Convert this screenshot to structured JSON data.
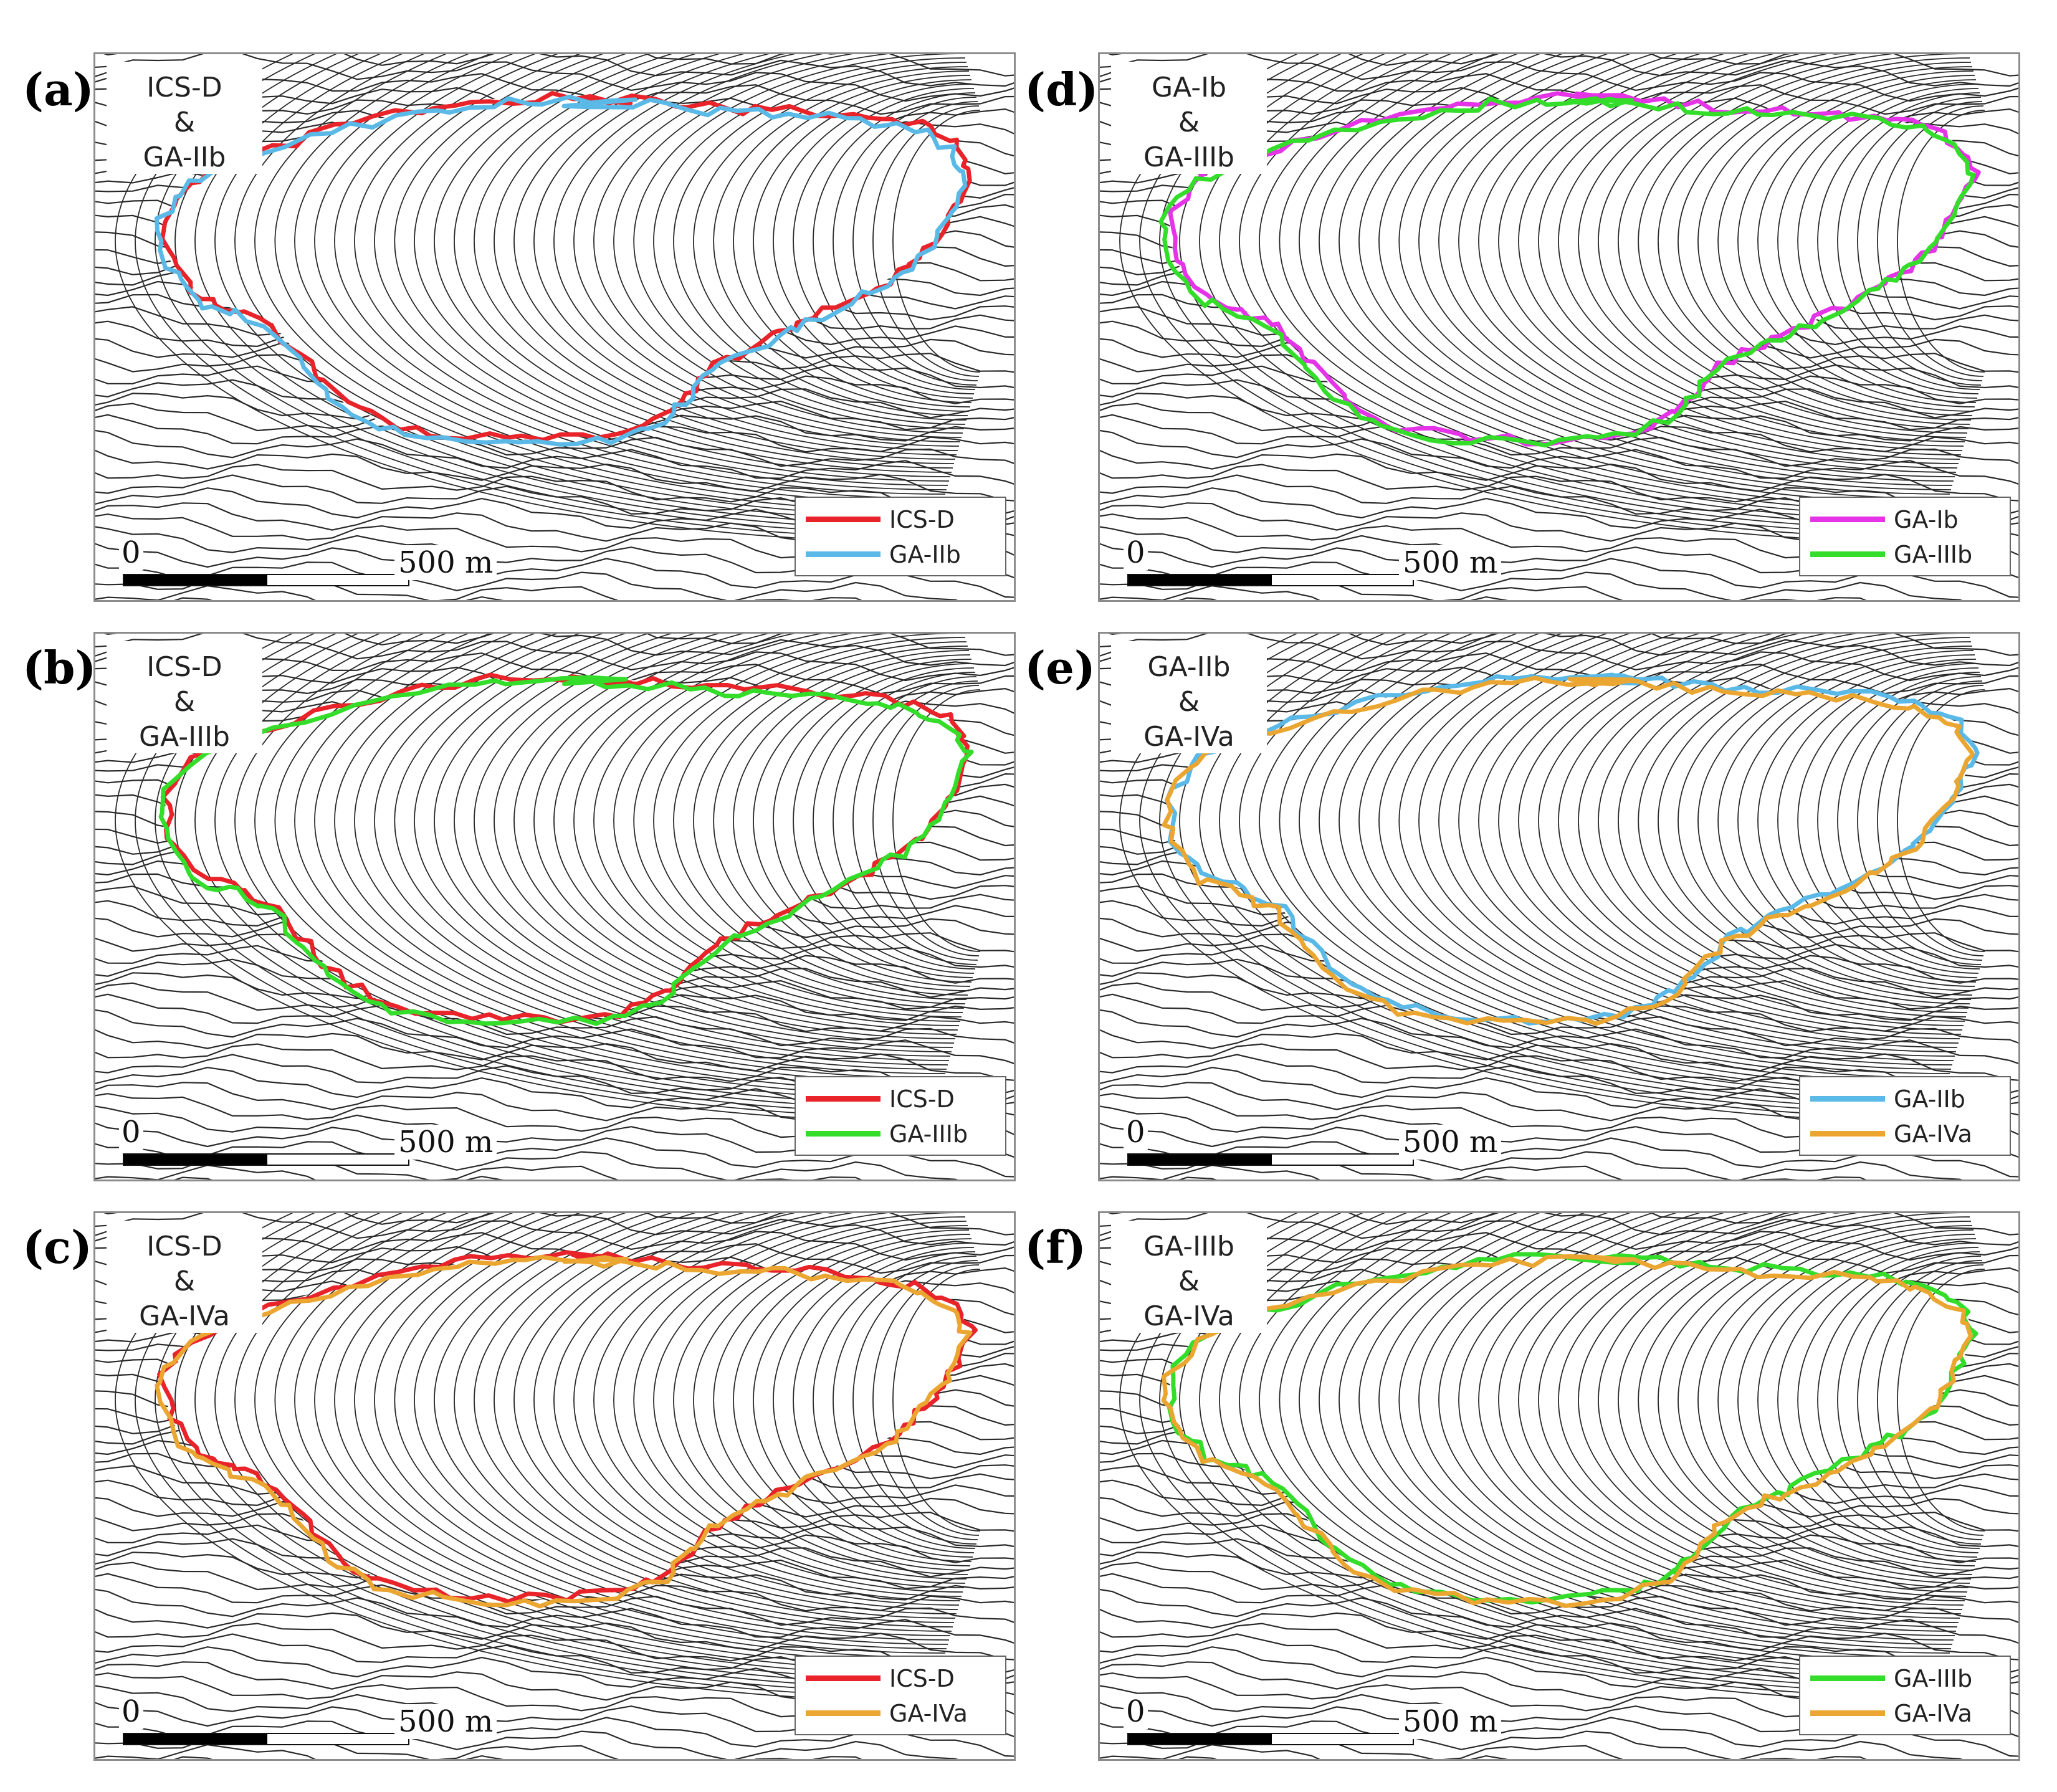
{
  "panels": [
    {
      "letter": "(a)",
      "title": [
        "ICS-D",
        "&",
        "GA-IIb"
      ],
      "legend": [
        {
          "label": "ICS-D",
          "color": "#e8242a"
        },
        {
          "label": "GA-IIb",
          "color": "#5ab9e6"
        }
      ]
    },
    {
      "letter": "(b)",
      "title": [
        "ICS-D",
        "&",
        "GA-IIIb"
      ],
      "legend": [
        {
          "label": "ICS-D",
          "color": "#e8242a"
        },
        {
          "label": "GA-IIIb",
          "color": "#33dd2a"
        }
      ]
    },
    {
      "letter": "(c)",
      "title": [
        "ICS-D",
        "&",
        "GA-IVa"
      ],
      "legend": [
        {
          "label": "ICS-D",
          "color": "#e8242a"
        },
        {
          "label": "GA-IVa",
          "color": "#eba631"
        }
      ]
    },
    {
      "letter": "(d)",
      "title": [
        "GA-Ib",
        "&",
        "GA-IIIb"
      ],
      "legend": [
        {
          "label": "GA-Ib",
          "color": "#e534e8"
        },
        {
          "label": "GA-IIIb",
          "color": "#33dd2a"
        }
      ]
    },
    {
      "letter": "(e)",
      "title": [
        "GA-IIb",
        "&",
        "GA-IVa"
      ],
      "legend": [
        {
          "label": "GA-IIb",
          "color": "#5ab9e6"
        },
        {
          "label": "GA-IVa",
          "color": "#eba631"
        }
      ]
    },
    {
      "letter": "(f)",
      "title": [
        "GA-IIIb",
        "&",
        "GA-IVa"
      ],
      "legend": [
        {
          "label": "GA-IIIb",
          "color": "#33dd2a"
        },
        {
          "label": "GA-IVa",
          "color": "#eba631"
        }
      ]
    }
  ],
  "scalebar": {
    "start_label": "0",
    "distance_label": "500 m"
  },
  "colors": {
    "contour": "#2a2a2a",
    "frame": "#8c8c8c"
  }
}
